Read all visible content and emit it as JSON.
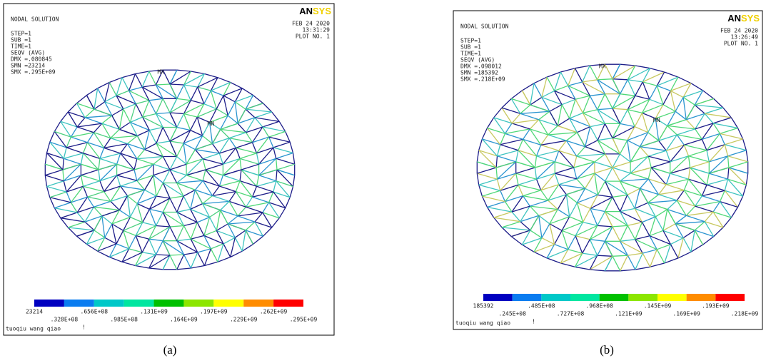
{
  "panels": [
    {
      "title": "NODAL SOLUTION",
      "info": [
        "STEP=1",
        "SUB =1",
        "TIME=1",
        "SEQV      (AVG)",
        "DMX =.080845",
        "SMN =23214",
        "SMX =.295E+09"
      ],
      "date": "FEB 24 2020",
      "time": "13:31:29",
      "plot": "PLOT NO.   1",
      "logo_a": "AN",
      "logo_b": "SYS",
      "max_marker": "MX",
      "min_marker": "MN",
      "legend": [
        "23214",
        ".328E+08",
        ".656E+08",
        ".985E+08",
        ".131E+09",
        ".164E+09",
        ".197E+09",
        ".229E+09",
        ".262E+09",
        ".295E+09"
      ],
      "footer": "tuoqiu wang qiao",
      "footer_mark": "!",
      "caption": "(a)"
    },
    {
      "title": "NODAL SOLUTION",
      "info": [
        "STEP=1",
        "SUB =1",
        "TIME=1",
        "SEQV      (AVG)",
        "DMX =.098012",
        "SMN =185392",
        "SMX =.218E+09"
      ],
      "date": "FEB 24 2020",
      "time": "13:26:49",
      "plot": "PLOT NO.   1",
      "logo_a": "AN",
      "logo_b": "SYS",
      "max_marker": "MX",
      "min_marker": "MN",
      "legend": [
        "185392",
        ".245E+08",
        ".485E+08",
        ".727E+08",
        ".968E+08",
        ".121E+09",
        ".145E+09",
        ".169E+09",
        ".193E+09",
        ".218E+09"
      ],
      "footer": "tuoqiu wang qiao",
      "footer_mark": "!",
      "caption": "(b)"
    }
  ]
}
